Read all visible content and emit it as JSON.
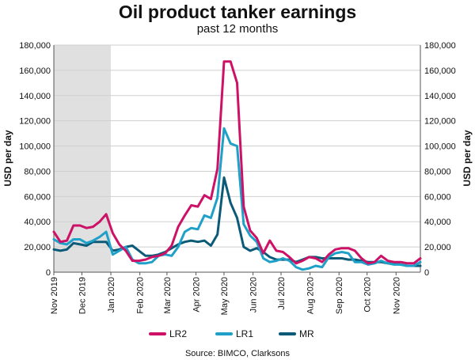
{
  "chart_data": {
    "type": "line",
    "title": "Oil product tanker earnings",
    "subtitle": "past 12 months",
    "ylabel": "USD per day",
    "ylabel_right": "USD per day",
    "source": "Source: BIMCO, Clarksons",
    "ylim": [
      0,
      180000
    ],
    "yticks": [
      "0",
      "20,000",
      "40,000",
      "60,000",
      "80,000",
      "100,000",
      "120,000",
      "140,000",
      "160,000",
      "180,000"
    ],
    "xlim": [
      "2019-11-01",
      "2020-11-27"
    ],
    "xticks": [
      {
        "label": "Nov 2019",
        "date": "2019-11-01"
      },
      {
        "label": "Dec 2019",
        "date": "2019-12-01"
      },
      {
        "label": "Jan 2020",
        "date": "2020-01-01"
      },
      {
        "label": "Feb 2020",
        "date": "2020-02-01"
      },
      {
        "label": "Mar 2020",
        "date": "2020-03-01"
      },
      {
        "label": "Apr 2020",
        "date": "2020-04-01"
      },
      {
        "label": "May 2020",
        "date": "2020-05-01"
      },
      {
        "label": "Jun 2020",
        "date": "2020-06-01"
      },
      {
        "label": "Jul 2020",
        "date": "2020-07-01"
      },
      {
        "label": "Aug 2020",
        "date": "2020-08-01"
      },
      {
        "label": "Sep 2020",
        "date": "2020-09-01"
      },
      {
        "label": "Oct 2020",
        "date": "2020-10-01"
      },
      {
        "label": "Nov 2020",
        "date": "2020-11-01"
      }
    ],
    "shaded_period": [
      "2019-11-01",
      "2020-01-01"
    ],
    "grid": "horizontal",
    "legend_position": "bottom",
    "x": [
      "2019-11-01",
      "2019-11-08",
      "2019-11-15",
      "2019-11-22",
      "2019-11-29",
      "2019-12-06",
      "2019-12-13",
      "2019-12-20",
      "2019-12-27",
      "2020-01-03",
      "2020-01-10",
      "2020-01-17",
      "2020-01-24",
      "2020-01-31",
      "2020-02-07",
      "2020-02-14",
      "2020-02-21",
      "2020-02-28",
      "2020-03-06",
      "2020-03-13",
      "2020-03-20",
      "2020-03-27",
      "2020-04-03",
      "2020-04-10",
      "2020-04-17",
      "2020-04-24",
      "2020-05-01",
      "2020-05-08",
      "2020-05-15",
      "2020-05-22",
      "2020-05-29",
      "2020-06-05",
      "2020-06-12",
      "2020-06-19",
      "2020-06-26",
      "2020-07-03",
      "2020-07-10",
      "2020-07-17",
      "2020-07-24",
      "2020-07-31",
      "2020-08-07",
      "2020-08-14",
      "2020-08-21",
      "2020-08-28",
      "2020-09-04",
      "2020-09-11",
      "2020-09-18",
      "2020-09-25",
      "2020-10-02",
      "2020-10-09",
      "2020-10-16",
      "2020-10-23",
      "2020-10-30",
      "2020-11-06",
      "2020-11-13",
      "2020-11-20",
      "2020-11-27"
    ],
    "series": [
      {
        "name": "LR2",
        "color": "#cc1166",
        "values": [
          32000,
          24000,
          25000,
          37000,
          37000,
          35000,
          36000,
          40000,
          46000,
          31000,
          22000,
          17000,
          9000,
          9000,
          10000,
          12000,
          13000,
          15000,
          21000,
          36000,
          45000,
          53000,
          52000,
          61000,
          58000,
          82000,
          167000,
          167000,
          150000,
          52000,
          33000,
          27000,
          15000,
          25000,
          17000,
          16000,
          12000,
          7000,
          9000,
          12000,
          11000,
          8000,
          14000,
          18000,
          19000,
          19000,
          17000,
          11000,
          7000,
          8000,
          13000,
          9000,
          8000,
          8000,
          7000,
          7000,
          11000
        ]
      },
      {
        "name": "LR1",
        "color": "#1fa0c8",
        "values": [
          26000,
          23000,
          22000,
          26000,
          26000,
          23000,
          25000,
          28000,
          32000,
          14000,
          17000,
          20000,
          10000,
          7000,
          7000,
          8000,
          13000,
          14000,
          13000,
          20000,
          32000,
          35000,
          34000,
          45000,
          43000,
          59000,
          114000,
          102000,
          100000,
          38000,
          29000,
          24000,
          11000,
          8000,
          9000,
          11000,
          9000,
          4000,
          2000,
          3000,
          5000,
          4000,
          12000,
          15000,
          16000,
          15000,
          8000,
          8000,
          6000,
          7000,
          9000,
          7000,
          6000,
          6000,
          5000,
          5000,
          8000
        ]
      },
      {
        "name": "MR",
        "color": "#0b5a78",
        "values": [
          18000,
          17000,
          18000,
          23000,
          22000,
          21000,
          24000,
          24000,
          24000,
          17000,
          18000,
          20000,
          21000,
          17000,
          13000,
          13000,
          14000,
          16000,
          19000,
          22000,
          24000,
          25000,
          24000,
          25000,
          21000,
          30000,
          75000,
          55000,
          43000,
          20000,
          17000,
          19000,
          16000,
          12000,
          10000,
          10000,
          10000,
          8000,
          10000,
          12000,
          12000,
          11000,
          11000,
          11000,
          11000,
          10000,
          10000,
          9000,
          8000,
          8000,
          8000,
          7000,
          7000,
          6000,
          5000,
          5000,
          5000
        ]
      }
    ]
  }
}
